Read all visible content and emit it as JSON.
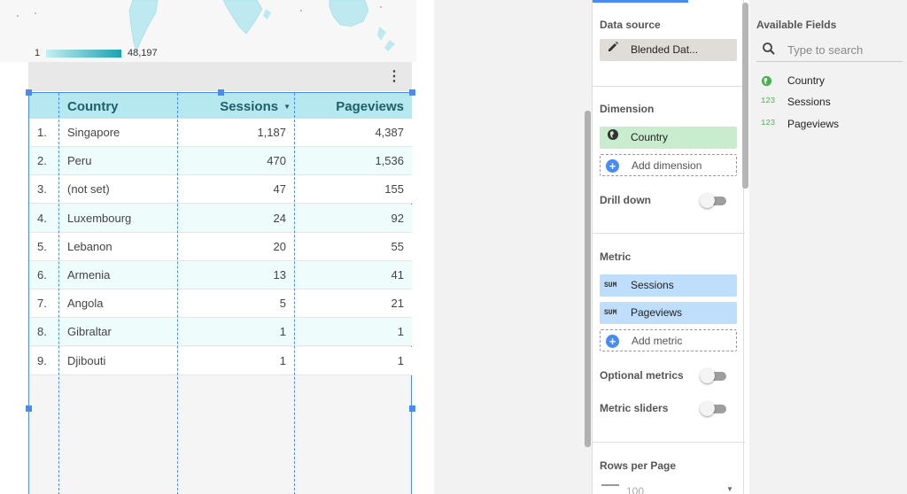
{
  "map": {
    "legend_min": "1",
    "legend_max": "48,197",
    "color_low": "#c6eef4",
    "color_high": "#1aa3b0"
  },
  "table": {
    "header_bg": "#b6e8f0",
    "columns": [
      "Country",
      "Sessions",
      "Pageviews"
    ],
    "sort_indicator": "▼",
    "rows": [
      {
        "idx": "1.",
        "country": "Singapore",
        "sessions": "1,187",
        "pageviews": "4,387"
      },
      {
        "idx": "2.",
        "country": "Peru",
        "sessions": "470",
        "pageviews": "1,536"
      },
      {
        "idx": "3.",
        "country": "(not set)",
        "sessions": "47",
        "pageviews": "155"
      },
      {
        "idx": "4.",
        "country": "Luxembourg",
        "sessions": "24",
        "pageviews": "92"
      },
      {
        "idx": "5.",
        "country": "Lebanon",
        "sessions": "20",
        "pageviews": "55"
      },
      {
        "idx": "6.",
        "country": "Armenia",
        "sessions": "13",
        "pageviews": "41"
      },
      {
        "idx": "7.",
        "country": "Angola",
        "sessions": "5",
        "pageviews": "21"
      },
      {
        "idx": "8.",
        "country": "Gibraltar",
        "sessions": "1",
        "pageviews": "1"
      },
      {
        "idx": "9.",
        "country": "Djibouti",
        "sessions": "1",
        "pageviews": "1"
      }
    ]
  },
  "properties": {
    "data_source_label": "Data source",
    "data_source_value": "Blended Dat...",
    "dimension_label": "Dimension",
    "dimension_value": "Country",
    "add_dimension": "Add dimension",
    "drill_down": "Drill down",
    "metric_label": "Metric",
    "metric_agg": "SUM",
    "metric_1": "Sessions",
    "metric_2": "Pageviews",
    "add_metric": "Add metric",
    "optional_metrics": "Optional metrics",
    "metric_sliders": "Metric sliders",
    "rows_per_page": "Rows per Page",
    "rows_value": "100"
  },
  "fields": {
    "title": "Available Fields",
    "search_placeholder": "Type to search",
    "numeric_tag": "123",
    "items": [
      "Country",
      "Sessions",
      "Pageviews"
    ]
  }
}
